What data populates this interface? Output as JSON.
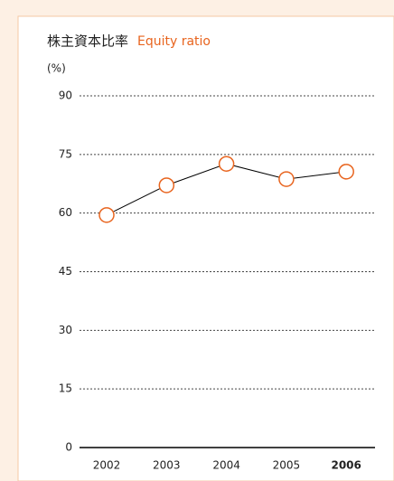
{
  "chart_data": {
    "type": "line",
    "title": "株主資本比率",
    "subtitle": "Equity ratio",
    "y_label": "(%)",
    "categories": [
      "2002",
      "2003",
      "2004",
      "2005",
      "2006"
    ],
    "series": [
      {
        "name": "Equity ratio",
        "color": "#e8641e",
        "values": [
          59.5,
          67.1,
          72.6,
          68.7,
          70.6
        ]
      }
    ],
    "ylim": [
      0,
      90
    ],
    "yticks": [
      0,
      15,
      30,
      45,
      60,
      75,
      90
    ],
    "grid": true
  }
}
